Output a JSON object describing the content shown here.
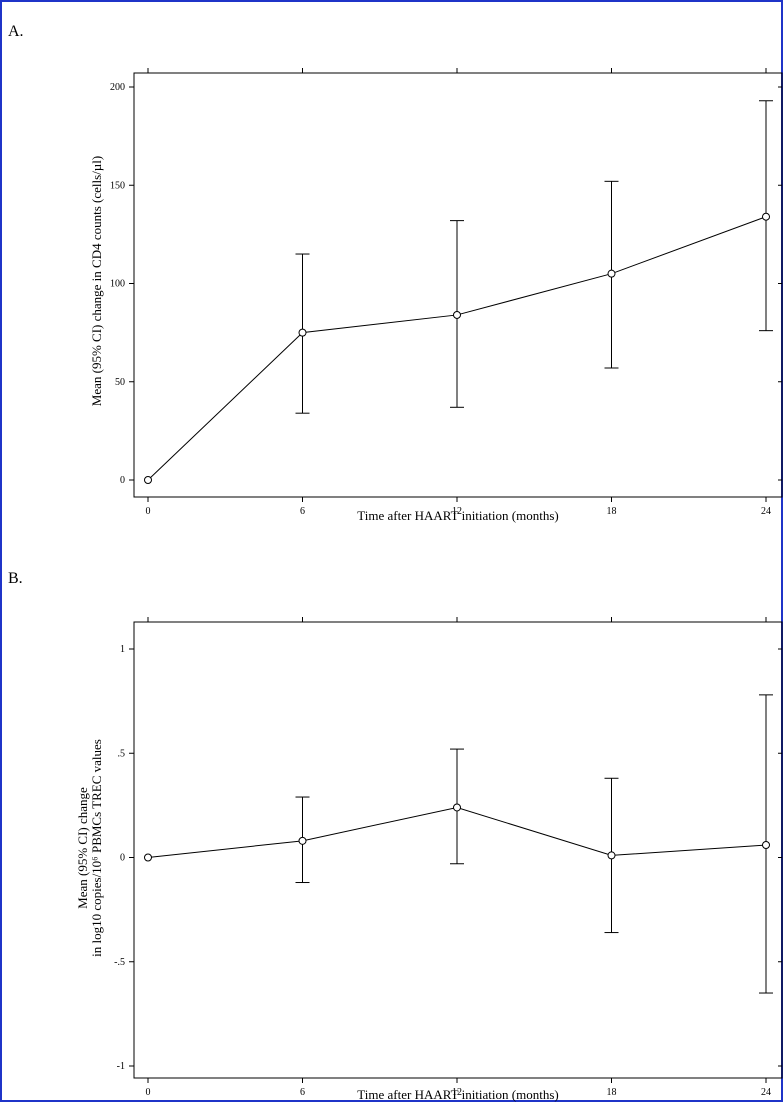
{
  "chart_data": [
    {
      "type": "line",
      "panel_label": "A.",
      "title": "",
      "xlabel": "Time after HAART initiation (months)",
      "ylabel": "Mean (95% CI) change in CD4 counts (cells/µl)",
      "x_ticks": [
        "0",
        "6",
        "12",
        "18",
        "24"
      ],
      "y_ticks": [
        "0",
        "50",
        "100",
        "150",
        "200"
      ],
      "xlim": [
        0,
        24
      ],
      "ylim": [
        0,
        200
      ],
      "grid": false,
      "series": [
        {
          "x": [
            0,
            6,
            12,
            18,
            24
          ],
          "values": [
            0,
            75,
            84,
            105,
            134
          ],
          "ci_lower": [
            0,
            34,
            37,
            57,
            76
          ],
          "ci_upper": [
            0,
            115,
            132,
            152,
            193
          ]
        }
      ]
    },
    {
      "type": "line",
      "panel_label": "B.",
      "title": "",
      "xlabel": "Time after HAART initiation (months)",
      "ylabel_line1": "Mean (95% CI) change",
      "ylabel_line2": "in log10 copies/10⁶ PBMCs TREC values",
      "x_ticks": [
        "0",
        "6",
        "12",
        "18",
        "24"
      ],
      "y_ticks": [
        "-1",
        "-.5",
        "0",
        ".5",
        "1"
      ],
      "xlim": [
        0,
        24
      ],
      "ylim": [
        -1,
        1
      ],
      "grid": false,
      "series": [
        {
          "x": [
            0,
            6,
            12,
            18,
            24
          ],
          "values": [
            0,
            0.08,
            0.24,
            0.01,
            0.06
          ],
          "ci_lower": [
            0,
            -0.12,
            -0.03,
            -0.36,
            -0.65
          ],
          "ci_upper": [
            0,
            0.29,
            0.52,
            0.38,
            0.78
          ]
        }
      ]
    }
  ]
}
